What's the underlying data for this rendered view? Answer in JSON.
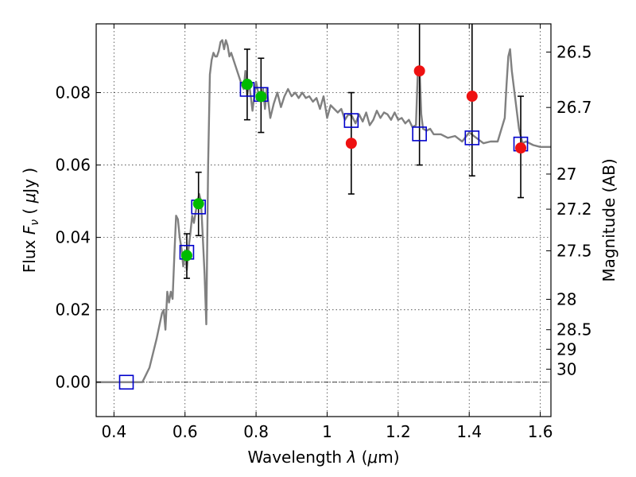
{
  "chart_data": {
    "type": "scatter",
    "title": "",
    "xlabel": "Wavelength  λ (μm)",
    "ylabel": "Flux  F_ν  ( μJy )",
    "ylabel_right": "Magnitude (AB)",
    "xlim": [
      0.35,
      1.63
    ],
    "ylim": [
      -0.0095,
      0.099
    ],
    "grid": true,
    "x_ticks": [
      0.4,
      0.6,
      0.8,
      1.0,
      1.2,
      1.4,
      1.6
    ],
    "x_tick_labels": [
      "0.4",
      "0.6",
      "0.8",
      "1",
      "1.2",
      "1.4",
      "1.6"
    ],
    "y_ticks": [
      0.0,
      0.02,
      0.04,
      0.06,
      0.08
    ],
    "y_tick_labels": [
      "0.00",
      "0.02",
      "0.04",
      "0.06",
      "0.08"
    ],
    "right_ticks": [
      {
        "flux": 0.0912,
        "label": "26.5"
      },
      {
        "flux": 0.0759,
        "label": "26.7"
      },
      {
        "flux": 0.0575,
        "label": "27"
      },
      {
        "flux": 0.0478,
        "label": "27.2"
      },
      {
        "flux": 0.0363,
        "label": "27.5"
      },
      {
        "flux": 0.0229,
        "label": "28"
      },
      {
        "flux": 0.0145,
        "label": "28.5"
      },
      {
        "flux": 0.0091,
        "label": "29"
      },
      {
        "flux": 0.0036,
        "label": "30"
      }
    ],
    "model_sed": [
      [
        0.35,
        0.0
      ],
      [
        0.48,
        0.0
      ],
      [
        0.5,
        0.004
      ],
      [
        0.52,
        0.012
      ],
      [
        0.535,
        0.019
      ],
      [
        0.54,
        0.02
      ],
      [
        0.545,
        0.0145
      ],
      [
        0.55,
        0.025
      ],
      [
        0.555,
        0.022
      ],
      [
        0.56,
        0.025
      ],
      [
        0.565,
        0.023
      ],
      [
        0.57,
        0.035
      ],
      [
        0.575,
        0.046
      ],
      [
        0.58,
        0.045
      ],
      [
        0.585,
        0.04
      ],
      [
        0.59,
        0.037
      ],
      [
        0.595,
        0.032
      ],
      [
        0.6,
        0.036
      ],
      [
        0.605,
        0.031
      ],
      [
        0.61,
        0.037
      ],
      [
        0.615,
        0.041
      ],
      [
        0.62,
        0.046
      ],
      [
        0.625,
        0.044
      ],
      [
        0.63,
        0.047
      ],
      [
        0.635,
        0.05
      ],
      [
        0.64,
        0.052
      ],
      [
        0.645,
        0.05
      ],
      [
        0.65,
        0.04
      ],
      [
        0.655,
        0.03
      ],
      [
        0.66,
        0.016
      ],
      [
        0.665,
        0.06
      ],
      [
        0.67,
        0.085
      ],
      [
        0.675,
        0.089
      ],
      [
        0.68,
        0.091
      ],
      [
        0.685,
        0.09
      ],
      [
        0.69,
        0.09
      ],
      [
        0.695,
        0.0915
      ],
      [
        0.7,
        0.094
      ],
      [
        0.705,
        0.0945
      ],
      [
        0.71,
        0.092
      ],
      [
        0.715,
        0.0945
      ],
      [
        0.72,
        0.093
      ],
      [
        0.725,
        0.09
      ],
      [
        0.73,
        0.091
      ],
      [
        0.74,
        0.088
      ],
      [
        0.75,
        0.085
      ],
      [
        0.76,
        0.082
      ],
      [
        0.765,
        0.081
      ],
      [
        0.77,
        0.086
      ],
      [
        0.775,
        0.079
      ],
      [
        0.78,
        0.083
      ],
      [
        0.79,
        0.075
      ],
      [
        0.8,
        0.083
      ],
      [
        0.81,
        0.078
      ],
      [
        0.82,
        0.081
      ],
      [
        0.825,
        0.0755
      ],
      [
        0.83,
        0.081
      ],
      [
        0.84,
        0.073
      ],
      [
        0.85,
        0.077
      ],
      [
        0.86,
        0.08
      ],
      [
        0.87,
        0.076
      ],
      [
        0.88,
        0.079
      ],
      [
        0.89,
        0.081
      ],
      [
        0.9,
        0.079
      ],
      [
        0.91,
        0.08
      ],
      [
        0.92,
        0.0785
      ],
      [
        0.93,
        0.08
      ],
      [
        0.94,
        0.0785
      ],
      [
        0.95,
        0.079
      ],
      [
        0.96,
        0.0775
      ],
      [
        0.97,
        0.0785
      ],
      [
        0.98,
        0.0755
      ],
      [
        0.99,
        0.079
      ],
      [
        1.0,
        0.073
      ],
      [
        1.01,
        0.0765
      ],
      [
        1.02,
        0.0755
      ],
      [
        1.03,
        0.0745
      ],
      [
        1.04,
        0.0755
      ],
      [
        1.05,
        0.0725
      ],
      [
        1.06,
        0.074
      ],
      [
        1.07,
        0.0735
      ],
      [
        1.08,
        0.0715
      ],
      [
        1.09,
        0.074
      ],
      [
        1.1,
        0.072
      ],
      [
        1.11,
        0.0745
      ],
      [
        1.12,
        0.071
      ],
      [
        1.13,
        0.0725
      ],
      [
        1.14,
        0.075
      ],
      [
        1.15,
        0.073
      ],
      [
        1.16,
        0.0745
      ],
      [
        1.17,
        0.074
      ],
      [
        1.18,
        0.0725
      ],
      [
        1.19,
        0.0745
      ],
      [
        1.2,
        0.0725
      ],
      [
        1.21,
        0.073
      ],
      [
        1.22,
        0.0715
      ],
      [
        1.23,
        0.0725
      ],
      [
        1.24,
        0.0705
      ],
      [
        1.25,
        0.071
      ],
      [
        1.255,
        0.085
      ],
      [
        1.26,
        0.087
      ],
      [
        1.265,
        0.074
      ],
      [
        1.27,
        0.07
      ],
      [
        1.28,
        0.0695
      ],
      [
        1.29,
        0.07
      ],
      [
        1.3,
        0.0685
      ],
      [
        1.32,
        0.0685
      ],
      [
        1.34,
        0.0675
      ],
      [
        1.36,
        0.068
      ],
      [
        1.38,
        0.0665
      ],
      [
        1.4,
        0.069
      ],
      [
        1.42,
        0.0675
      ],
      [
        1.44,
        0.066
      ],
      [
        1.46,
        0.0665
      ],
      [
        1.48,
        0.0665
      ],
      [
        1.5,
        0.073
      ],
      [
        1.505,
        0.082
      ],
      [
        1.51,
        0.09
      ],
      [
        1.515,
        0.092
      ],
      [
        1.52,
        0.086
      ],
      [
        1.53,
        0.078
      ],
      [
        1.54,
        0.07
      ],
      [
        1.55,
        0.066
      ],
      [
        1.56,
        0.0665
      ],
      [
        1.58,
        0.0655
      ],
      [
        1.6,
        0.065
      ],
      [
        1.63,
        0.065
      ]
    ],
    "model_bands": [
      {
        "x": 0.435,
        "y": 0.0
      },
      {
        "x": 0.605,
        "y": 0.0359
      },
      {
        "x": 0.638,
        "y": 0.0484
      },
      {
        "x": 0.775,
        "y": 0.0809
      },
      {
        "x": 0.814,
        "y": 0.0795
      },
      {
        "x": 1.068,
        "y": 0.0723
      },
      {
        "x": 1.26,
        "y": 0.0686
      },
      {
        "x": 1.408,
        "y": 0.0675
      },
      {
        "x": 1.545,
        "y": 0.0658
      }
    ],
    "observed_green": [
      {
        "x": 0.605,
        "y": 0.035,
        "err_lo": 0.0287,
        "err_hi": 0.041
      },
      {
        "x": 0.638,
        "y": 0.0493,
        "err_lo": 0.0405,
        "err_hi": 0.058
      },
      {
        "x": 0.775,
        "y": 0.0823,
        "err_lo": 0.0725,
        "err_hi": 0.092
      },
      {
        "x": 0.814,
        "y": 0.0789,
        "err_lo": 0.069,
        "err_hi": 0.0895
      }
    ],
    "observed_red": [
      {
        "x": 1.068,
        "y": 0.066,
        "err_lo": 0.052,
        "err_hi": 0.08
      },
      {
        "x": 1.26,
        "y": 0.086,
        "err_lo": 0.06,
        "err_hi": 0.099
      },
      {
        "x": 1.408,
        "y": 0.079,
        "err_lo": 0.057,
        "err_hi": 0.099
      },
      {
        "x": 1.545,
        "y": 0.0647,
        "err_lo": 0.051,
        "err_hi": 0.079
      }
    ],
    "colors": {
      "model_line": "#808080",
      "band_box": "#0000cc",
      "green_point": "#00bb00",
      "red_point": "#ee1111",
      "error_bar": "#000000",
      "zero_line": "#000000"
    }
  }
}
